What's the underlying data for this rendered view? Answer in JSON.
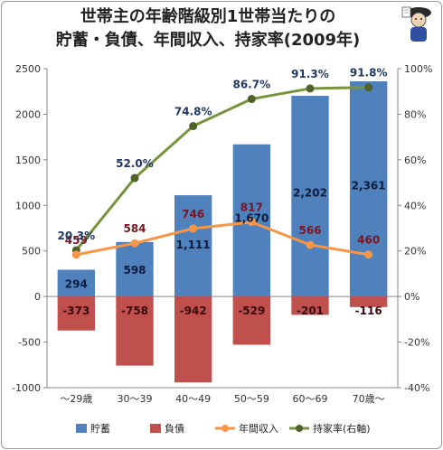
{
  "title_line1": "世帯主の年齢階級別1世帯当たりの",
  "title_line2": "貯蓄・負債、年間収入、持家率(2009年)",
  "chart_data": {
    "type": "bar",
    "categories": [
      "～29歳",
      "30～39",
      "40～49",
      "50～59",
      "60～69",
      "70歳～"
    ],
    "series": [
      {
        "name": "貯蓄",
        "type": "bar",
        "axis": "left",
        "color": "#4f81bd",
        "values": [
          294,
          598,
          1111,
          1670,
          2202,
          2361
        ],
        "labels": [
          "294",
          "598",
          "1,111",
          "1,670",
          "2,202",
          "2,361"
        ]
      },
      {
        "name": "負債",
        "type": "bar",
        "axis": "left",
        "color": "#c0504d",
        "values": [
          -373,
          -758,
          -942,
          -529,
          -201,
          -116
        ],
        "labels": [
          "-373",
          "-758",
          "-942",
          "-529",
          "-201",
          "-116"
        ]
      },
      {
        "name": "年間収入",
        "type": "line",
        "axis": "left",
        "color": "#f79646",
        "values": [
          459,
          584,
          746,
          817,
          566,
          460
        ],
        "labels": [
          "459",
          "584",
          "746",
          "817",
          "566",
          "460"
        ]
      },
      {
        "name": "持家率(右軸)",
        "type": "line",
        "axis": "right",
        "color": "#4f6228",
        "values": [
          20.3,
          52.0,
          74.8,
          86.7,
          91.3,
          91.8
        ],
        "labels": [
          "20.3%",
          "52.0%",
          "74.8%",
          "86.7%",
          "91.3%",
          "91.8%"
        ]
      }
    ],
    "ylim": [
      -1000,
      2500
    ],
    "yticks": [
      "-1000",
      "-500",
      "0",
      "500",
      "1000",
      "1500",
      "2000",
      "2500"
    ],
    "y2lim": [
      -40,
      100
    ],
    "y2ticks": [
      "-40%",
      "-20%",
      "0%",
      "20%",
      "40%",
      "60%",
      "80%",
      "100%"
    ],
    "legend_position": "bottom",
    "grid": false
  }
}
